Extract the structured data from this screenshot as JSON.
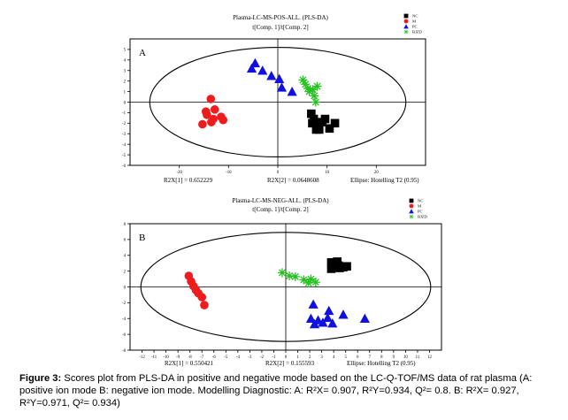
{
  "figure": {
    "caption_label": "Figure 3:",
    "caption_text": " Scores plot from PLS-DA in positive and negative mode based on the LC-Q-TOF/MS data of rat plasma (A: positive ion mode B: negative ion mode. Modelling Diagnostic: A: R²X= 0.907, R²Y=0.934, Q²= 0.8. B: R²X= 0.927, R²Y=0.971, Q²= 0.934)"
  },
  "chart_data": [
    {
      "type": "scatter",
      "panel_label": "A",
      "title": "Plasma-LC-MS-POS-ALL. (PLS-DA)",
      "subtitle": "t[Comp. 1]/t[Comp. 2]",
      "xlim": [
        -30,
        30
      ],
      "ylim": [
        -6,
        6
      ],
      "xticks": [
        -20,
        -10,
        0,
        10,
        20
      ],
      "yticks": [
        -6,
        -5,
        -4,
        -3,
        -2,
        -1,
        0,
        1,
        2,
        3,
        4,
        5
      ],
      "legend_position": "top-right",
      "footer": {
        "r2x1": "R2X[1] = 0.652229",
        "r2x2": "R2X[2] = 0.0648608",
        "ellipse": "Ellipse: Hotelling T2 (0.95)"
      },
      "ellipse": {
        "rx": 26,
        "ry": 5.2
      },
      "series": [
        {
          "name": "NC",
          "marker": "square",
          "color": "#000000",
          "points": [
            [
              6.8,
              -1.1
            ],
            [
              7.3,
              -1.6
            ],
            [
              7.0,
              -2.0
            ],
            [
              8.1,
              -2.2
            ],
            [
              9.0,
              -1.9
            ],
            [
              9.6,
              -1.6
            ],
            [
              8.4,
              -2.6
            ],
            [
              10.5,
              -2.5
            ],
            [
              11.6,
              -2.0
            ],
            [
              7.8,
              -2.6
            ]
          ]
        },
        {
          "name": "M",
          "marker": "circle",
          "color": "#ee1c1c",
          "points": [
            [
              -13.6,
              0.3
            ],
            [
              -14.6,
              -0.9
            ],
            [
              -12.8,
              -0.7
            ],
            [
              -13.1,
              -1.6
            ],
            [
              -11.5,
              -1.4
            ],
            [
              -11.1,
              -1.7
            ],
            [
              -15.3,
              -2.1
            ],
            [
              -13.5,
              -1.9
            ],
            [
              -14.4,
              -1.2
            ]
          ]
        },
        {
          "name": "PC",
          "marker": "triangle",
          "color": "#1010e0",
          "points": [
            [
              -4.6,
              3.7
            ],
            [
              -3.1,
              3.0
            ],
            [
              -1.3,
              2.5
            ],
            [
              0.3,
              2.2
            ],
            [
              -5.3,
              3.2
            ],
            [
              2.9,
              1.0
            ],
            [
              0.8,
              1.4
            ]
          ]
        },
        {
          "name": "BJZD",
          "marker": "star",
          "color": "#22c21c",
          "points": [
            [
              5.1,
              2.1
            ],
            [
              5.6,
              1.7
            ],
            [
              6.1,
              1.3
            ],
            [
              7.1,
              1.2
            ],
            [
              6.4,
              1.0
            ],
            [
              8.0,
              1.5
            ],
            [
              7.4,
              0.6
            ],
            [
              7.7,
              0.0
            ]
          ]
        }
      ]
    },
    {
      "type": "scatter",
      "panel_label": "B",
      "title": "Plasma-LC-MS-NEG-ALL. (PLS-DA)",
      "subtitle": "t[Comp. 1]/t[Comp. 2]",
      "xlim": [
        -13,
        13
      ],
      "ylim": [
        -8,
        8
      ],
      "xticks": [
        -12,
        -11,
        -10,
        -9,
        -8,
        -7,
        -6,
        -5,
        -4,
        -3,
        -2,
        -1,
        0,
        1,
        2,
        3,
        4,
        5,
        6,
        7,
        8,
        9,
        10,
        11,
        12
      ],
      "yticks": [
        -8,
        -6,
        -4,
        -2,
        0,
        2,
        4,
        6,
        8
      ],
      "legend_position": "top-right",
      "footer": {
        "r2x1": "R2X[1] = 0.550421",
        "r2x2": "R2X[2] = 0.155593",
        "ellipse": "Ellipse: Hotelling T2 (0.95)"
      },
      "ellipse": {
        "rx": 12.1,
        "ry": 6.9
      },
      "series": [
        {
          "name": "NC",
          "marker": "square",
          "color": "#000000",
          "points": [
            [
              3.8,
              3.1
            ],
            [
              4.3,
              3.2
            ],
            [
              4.4,
              2.7
            ],
            [
              4.8,
              2.5
            ],
            [
              5.1,
              2.6
            ],
            [
              3.8,
              2.3
            ],
            [
              4.5,
              2.4
            ],
            [
              4.1,
              2.8
            ]
          ]
        },
        {
          "name": "M",
          "marker": "circle",
          "color": "#ee1c1c",
          "points": [
            [
              -8.1,
              1.4
            ],
            [
              -7.9,
              0.7
            ],
            [
              -7.7,
              0.1
            ],
            [
              -7.5,
              -0.4
            ],
            [
              -7.3,
              -0.8
            ],
            [
              -7.0,
              -1.3
            ],
            [
              -6.8,
              -2.3
            ]
          ]
        },
        {
          "name": "PC",
          "marker": "triangle",
          "color": "#1010e0",
          "points": [
            [
              2.3,
              -2.2
            ],
            [
              3.6,
              -3.0
            ],
            [
              4.8,
              -3.5
            ],
            [
              6.6,
              -4.0
            ],
            [
              2.1,
              -4.0
            ],
            [
              3.9,
              -4.6
            ],
            [
              3.1,
              -4.5
            ],
            [
              2.4,
              -4.7
            ],
            [
              2.7,
              -4.2
            ],
            [
              3.5,
              -3.9
            ]
          ]
        },
        {
          "name": "BJZD",
          "marker": "star",
          "color": "#22c21c",
          "points": [
            [
              -0.3,
              1.8
            ],
            [
              0.3,
              1.4
            ],
            [
              0.8,
              1.3
            ],
            [
              1.5,
              0.9
            ],
            [
              1.9,
              0.5
            ],
            [
              2.5,
              0.6
            ],
            [
              2.1,
              1.0
            ]
          ]
        }
      ]
    }
  ]
}
